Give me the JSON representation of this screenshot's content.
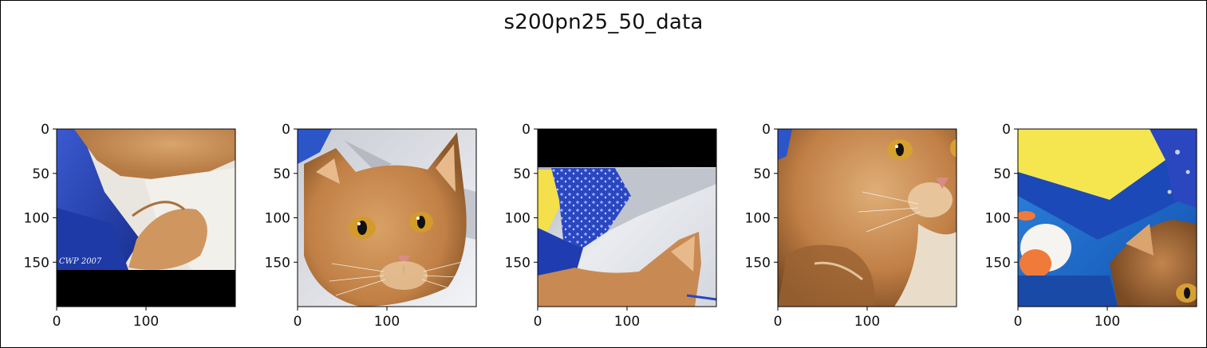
{
  "figure": {
    "title": "s200pn25_50_data"
  },
  "chart_data": {
    "type": "image-grid",
    "title": "s200pn25_50_data",
    "xlim": [
      0,
      200
    ],
    "ylim": [
      200,
      0
    ],
    "xticks": [
      0,
      100
    ],
    "yticks": [
      0,
      50,
      100,
      150
    ],
    "images": [
      {
        "description": "cat paw and tail on blue cloth with black band at bottom",
        "black_regions": [
          {
            "x0": 0,
            "x1": 200,
            "y0": 157,
            "y1": 200
          }
        ],
        "watermark": "CWP 2007",
        "palette": {
          "fur": "#c98e56",
          "cloth": "#2c49b8",
          "bg": "#e9e6df"
        }
      },
      {
        "description": "cat face close-up on white background",
        "black_regions": [],
        "palette": {
          "fur": "#c4874d",
          "eye": "#d49a2b",
          "bg": "#dcdfe6"
        }
      },
      {
        "description": "blue patterned cloth and cat ear with black band at top",
        "black_regions": [
          {
            "x0": 0,
            "x1": 200,
            "y0": 0,
            "y1": 43
          }
        ],
        "palette": {
          "fur": "#c88a52",
          "cloth": "#2a47c0",
          "bg": "#e4e6ea"
        }
      },
      {
        "description": "cat face and body zoomed in",
        "black_regions": [],
        "palette": {
          "fur": "#c7864d",
          "eye": "#d7a032",
          "bg": "#e6e0d4"
        }
      },
      {
        "description": "yellow and blue cloth with part of cat",
        "black_regions": [],
        "palette": {
          "fur": "#b27443",
          "cloth": "#1d74d6",
          "yellow": "#f5e650"
        }
      }
    ]
  }
}
